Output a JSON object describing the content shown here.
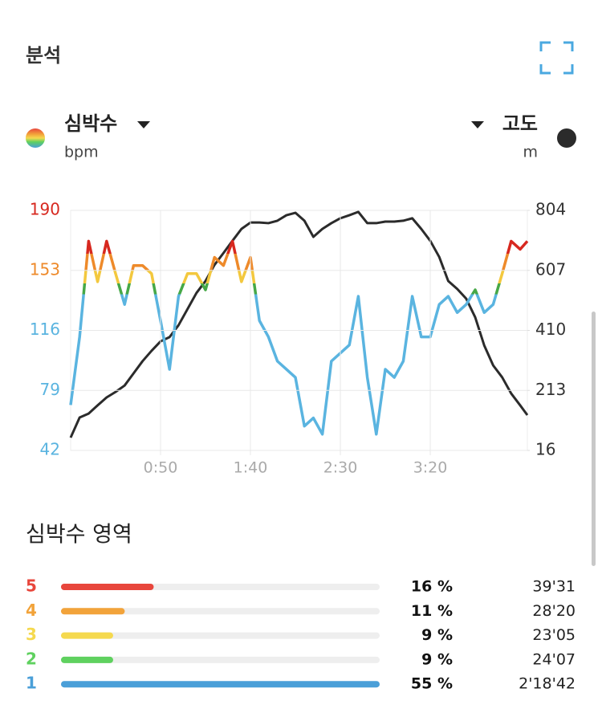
{
  "header": {
    "title": "분석"
  },
  "chart_data": [
    {
      "type": "line",
      "x": [
        0,
        5,
        10,
        15,
        20,
        25,
        30,
        35,
        40,
        45,
        50,
        55,
        60,
        65,
        70,
        75,
        80,
        85,
        90,
        95,
        100,
        105,
        110,
        115,
        120,
        125,
        130,
        135,
        140,
        145,
        150,
        155,
        160,
        165,
        170,
        175,
        180,
        185,
        190,
        195,
        200,
        205,
        210,
        215,
        220,
        225,
        230,
        235,
        240,
        245,
        250,
        254
      ],
      "xlim": [
        0,
        254
      ],
      "xticks": [
        {
          "value": 50,
          "label": "0:50"
        },
        {
          "value": 100,
          "label": "1:40"
        },
        {
          "value": 150,
          "label": "2:30"
        },
        {
          "value": 200,
          "label": "3:20"
        }
      ],
      "ylim": [
        42,
        190
      ],
      "yticks": [
        42,
        79,
        116,
        153,
        190
      ],
      "y2lim": [
        16,
        804
      ],
      "y2ticks": [
        16,
        213,
        410,
        607,
        804
      ],
      "grid": true,
      "series": [
        {
          "name": "심박수",
          "unit": "bpm",
          "color": "#5ab4e0",
          "values": [
            70,
            112,
            171,
            146,
            171,
            151,
            132,
            156,
            156,
            151,
            122,
            92,
            137,
            151,
            151,
            141,
            161,
            156,
            171,
            146,
            161,
            122,
            112,
            97,
            92,
            87,
            57,
            62,
            52,
            97,
            102,
            107,
            137,
            87,
            52,
            92,
            87,
            97,
            137,
            112,
            112,
            132,
            137,
            127,
            132,
            141,
            127,
            132,
            151,
            171,
            166,
            171
          ]
        },
        {
          "name": "고도",
          "unit": "m",
          "axis": "y2",
          "color": "#2b2b2b",
          "values": [
            58,
            124,
            137,
            164,
            190,
            208,
            229,
            269,
            309,
            343,
            374,
            388,
            427,
            480,
            533,
            572,
            625,
            664,
            704,
            743,
            764,
            764,
            762,
            770,
            788,
            796,
            770,
            717,
            743,
            762,
            778,
            788,
            799,
            762,
            762,
            767,
            767,
            770,
            778,
            743,
            704,
            651,
            572,
            546,
            514,
            453,
            361,
            295,
            256,
            203,
            164,
            132
          ]
        }
      ]
    },
    {
      "type": "bar",
      "orientation": "horizontal",
      "title": "심박수 영역",
      "categories": [
        "5",
        "4",
        "3",
        "2",
        "1"
      ],
      "values": [
        16,
        11,
        9,
        9,
        55
      ],
      "value_labels": [
        "16 %",
        "11 %",
        "9 %",
        "9 %",
        "55 %"
      ],
      "durations": [
        "39'31",
        "28'20",
        "23'05",
        "24'07",
        "2'18'42"
      ],
      "colors": [
        "#e8463c",
        "#f2a33a",
        "#f5d94e",
        "#5fd15f",
        "#4a9fd8"
      ]
    }
  ]
}
